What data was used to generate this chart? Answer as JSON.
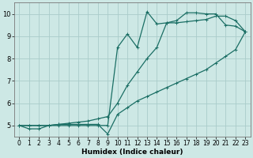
{
  "title": "",
  "xlabel": "Humidex (Indice chaleur)",
  "xlim": [
    -0.5,
    23.5
  ],
  "ylim": [
    4.5,
    10.5
  ],
  "yticks": [
    5,
    6,
    7,
    8,
    9,
    10
  ],
  "xticks": [
    0,
    1,
    2,
    3,
    4,
    5,
    6,
    7,
    8,
    9,
    10,
    11,
    12,
    13,
    14,
    15,
    16,
    17,
    18,
    19,
    20,
    21,
    22,
    23
  ],
  "bg_color": "#cde8e5",
  "grid_color": "#aaccca",
  "line_color": "#1a6e64",
  "line1_x": [
    0,
    1,
    2,
    3,
    4,
    5,
    6,
    7,
    8,
    9,
    10,
    11,
    12,
    13,
    14,
    15,
    16,
    17,
    18,
    19,
    20,
    21,
    22,
    23
  ],
  "line1_y": [
    5.0,
    4.85,
    4.85,
    5.0,
    5.05,
    5.05,
    5.05,
    5.05,
    5.05,
    4.62,
    5.5,
    5.8,
    6.1,
    6.3,
    6.5,
    6.7,
    6.9,
    7.1,
    7.3,
    7.5,
    7.8,
    8.1,
    8.4,
    9.2
  ],
  "line2_x": [
    0,
    1,
    2,
    3,
    4,
    5,
    6,
    7,
    8,
    9,
    10,
    11,
    12,
    13,
    14,
    15,
    16,
    17,
    18,
    19,
    20,
    21,
    22,
    23
  ],
  "line2_y": [
    5.0,
    5.0,
    5.0,
    5.0,
    5.05,
    5.1,
    5.15,
    5.2,
    5.3,
    5.4,
    6.0,
    6.8,
    7.4,
    8.0,
    8.5,
    9.6,
    9.6,
    9.65,
    9.7,
    9.75,
    9.9,
    9.9,
    9.7,
    9.2
  ],
  "line3_x": [
    0,
    1,
    2,
    3,
    4,
    5,
    6,
    7,
    8,
    9,
    10,
    11,
    12,
    13,
    14,
    15,
    16,
    17,
    18,
    19,
    20,
    21,
    22,
    23
  ],
  "line3_y": [
    5.0,
    5.0,
    5.0,
    5.0,
    5.0,
    5.0,
    5.0,
    5.0,
    5.0,
    5.0,
    8.5,
    9.1,
    8.5,
    10.1,
    9.55,
    9.6,
    9.7,
    10.05,
    10.05,
    10.0,
    10.0,
    9.5,
    9.45,
    9.2
  ],
  "xlabel_fontsize": 6.5,
  "tick_fontsize": 5.5,
  "marker_size": 2.5,
  "line_width": 0.9
}
